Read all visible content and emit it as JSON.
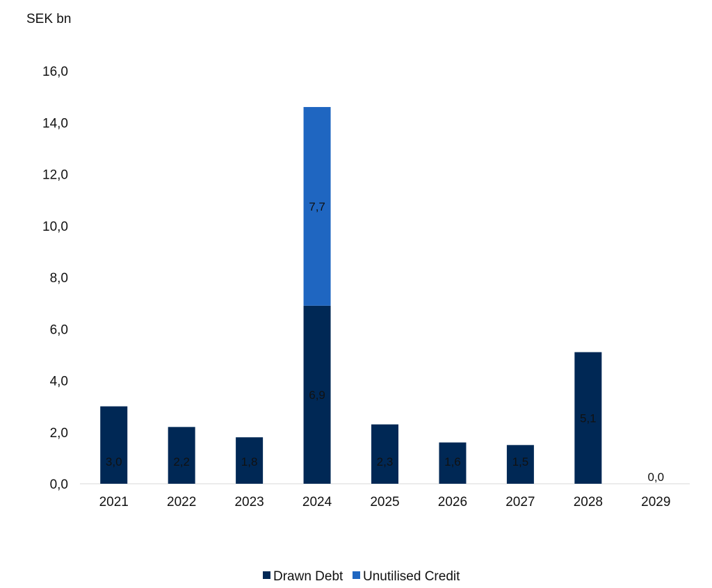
{
  "chart_data": {
    "type": "bar",
    "stacked": true,
    "unit_label": "SEK bn",
    "categories": [
      "2021",
      "2022",
      "2023",
      "2024",
      "2025",
      "2026",
      "2027",
      "2028",
      "2029"
    ],
    "series": [
      {
        "name": "Drawn Debt",
        "color": "#002855",
        "values": [
          3.0,
          2.2,
          1.8,
          6.9,
          2.3,
          1.6,
          1.5,
          5.1,
          0.0
        ],
        "labels": [
          "3,0",
          "2,2",
          "1,8",
          "6,9",
          "2,3",
          "1,6",
          "1,5",
          "5,1",
          "0,0"
        ]
      },
      {
        "name": "Unutilised Credit",
        "color": "#1f66c1",
        "values": [
          0,
          0,
          0,
          7.7,
          0,
          0,
          0,
          0,
          0
        ],
        "labels": [
          "",
          "",
          "",
          "7,7",
          "",
          "",
          "",
          "",
          ""
        ]
      }
    ],
    "ylim": [
      0,
      16
    ],
    "yticks": [
      "0,0",
      "2,0",
      "4,0",
      "6,0",
      "8,0",
      "10,0",
      "12,0",
      "14,0",
      "16,0"
    ],
    "ytick_values": [
      0,
      2,
      4,
      6,
      8,
      10,
      12,
      14,
      16
    ],
    "grid": false,
    "legend_position": "bottom-center"
  }
}
